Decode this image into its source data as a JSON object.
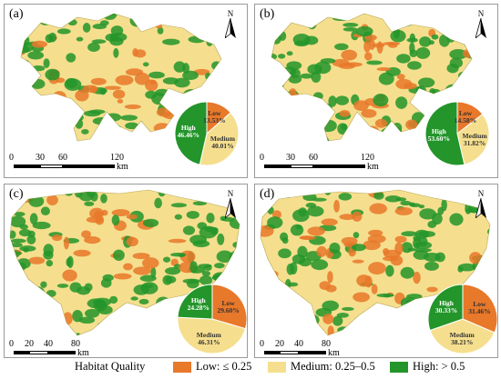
{
  "panels": [
    {
      "label": "(a)",
      "north": "N",
      "pie": {
        "low": {
          "name": "Low",
          "pct": "13.53%",
          "value": 13.53
        },
        "medium": {
          "name": "Medium",
          "pct": "40.01%",
          "value": 40.01
        },
        "high": {
          "name": "High",
          "pct": "46.46%",
          "value": 46.46
        }
      },
      "scale": {
        "ticks": [
          "0",
          "30",
          "60",
          "120"
        ],
        "unit": "km"
      }
    },
    {
      "label": "(b)",
      "north": "N",
      "pie": {
        "low": {
          "name": "Low",
          "pct": "14.58%",
          "value": 14.58
        },
        "medium": {
          "name": "Medium",
          "pct": "31.82%",
          "value": 31.82
        },
        "high": {
          "name": "High",
          "pct": "53.60%",
          "value": 53.6
        }
      },
      "scale": {
        "ticks": [
          "0",
          "30",
          "60",
          "120"
        ],
        "unit": "km"
      }
    },
    {
      "label": "(c)",
      "north": "N",
      "pie": {
        "low": {
          "name": "Low",
          "pct": "29.60%",
          "value": 29.6
        },
        "medium": {
          "name": "Medium",
          "pct": "46.31%",
          "value": 46.31
        },
        "high": {
          "name": "High",
          "pct": "24.28%",
          "value": 24.28
        }
      },
      "scale": {
        "ticks": [
          "0",
          "20",
          "40",
          "80"
        ],
        "unit": "km"
      }
    },
    {
      "label": "(d)",
      "north": "N",
      "pie": {
        "low": {
          "name": "Low",
          "pct": "31.46%",
          "value": 31.46
        },
        "medium": {
          "name": "Medium",
          "pct": "38.21%",
          "value": 38.21
        },
        "high": {
          "name": "High",
          "pct": "30.33%",
          "value": 30.33
        }
      },
      "scale": {
        "ticks": [
          "0",
          "20",
          "40",
          "80"
        ],
        "unit": "km"
      }
    }
  ],
  "legend": {
    "title": "Habitat Quality",
    "items": [
      {
        "label": "Low: ≤ 0.25",
        "color": "#e8782a"
      },
      {
        "label": "Medium: 0.25–0.5",
        "color": "#f5df8e"
      },
      {
        "label": "High: > 0.5",
        "color": "#23952a"
      }
    ]
  },
  "colors": {
    "low": "#e8782a",
    "medium": "#f5df8e",
    "high": "#23952a"
  }
}
